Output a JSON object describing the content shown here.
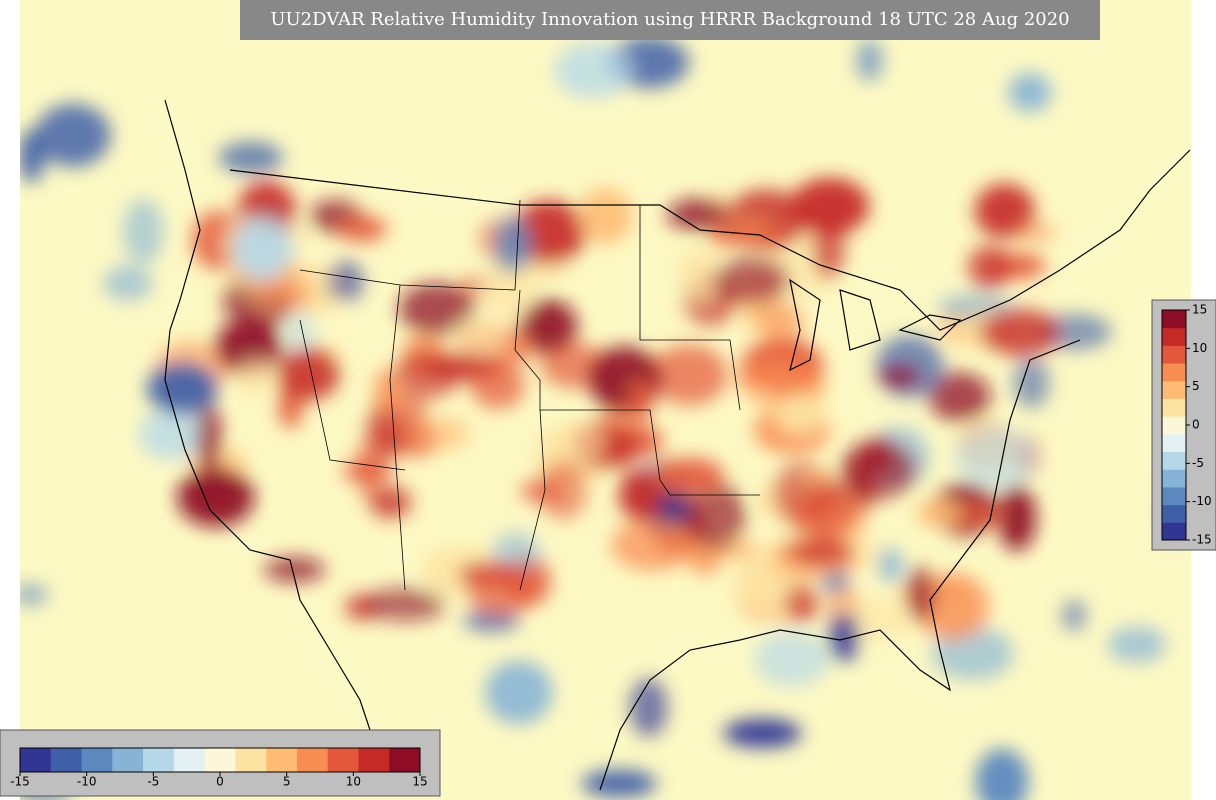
{
  "title": "UU2DVAR Relative Humidity Innovation using HRRR Background 18 UTC 28 Aug 2020",
  "colorbar": {
    "range": [
      -15,
      15
    ],
    "ticks": [
      -15,
      -10,
      -5,
      0,
      5,
      10,
      15
    ],
    "colors": [
      "#313695",
      "#3f5fa8",
      "#5b88bf",
      "#86b3d6",
      "#b5d8e8",
      "#e3f1f4",
      "#fbf7d8",
      "#fde3a1",
      "#fdbb74",
      "#f88d52",
      "#e3583a",
      "#c52a27",
      "#8e0c25"
    ]
  }
}
